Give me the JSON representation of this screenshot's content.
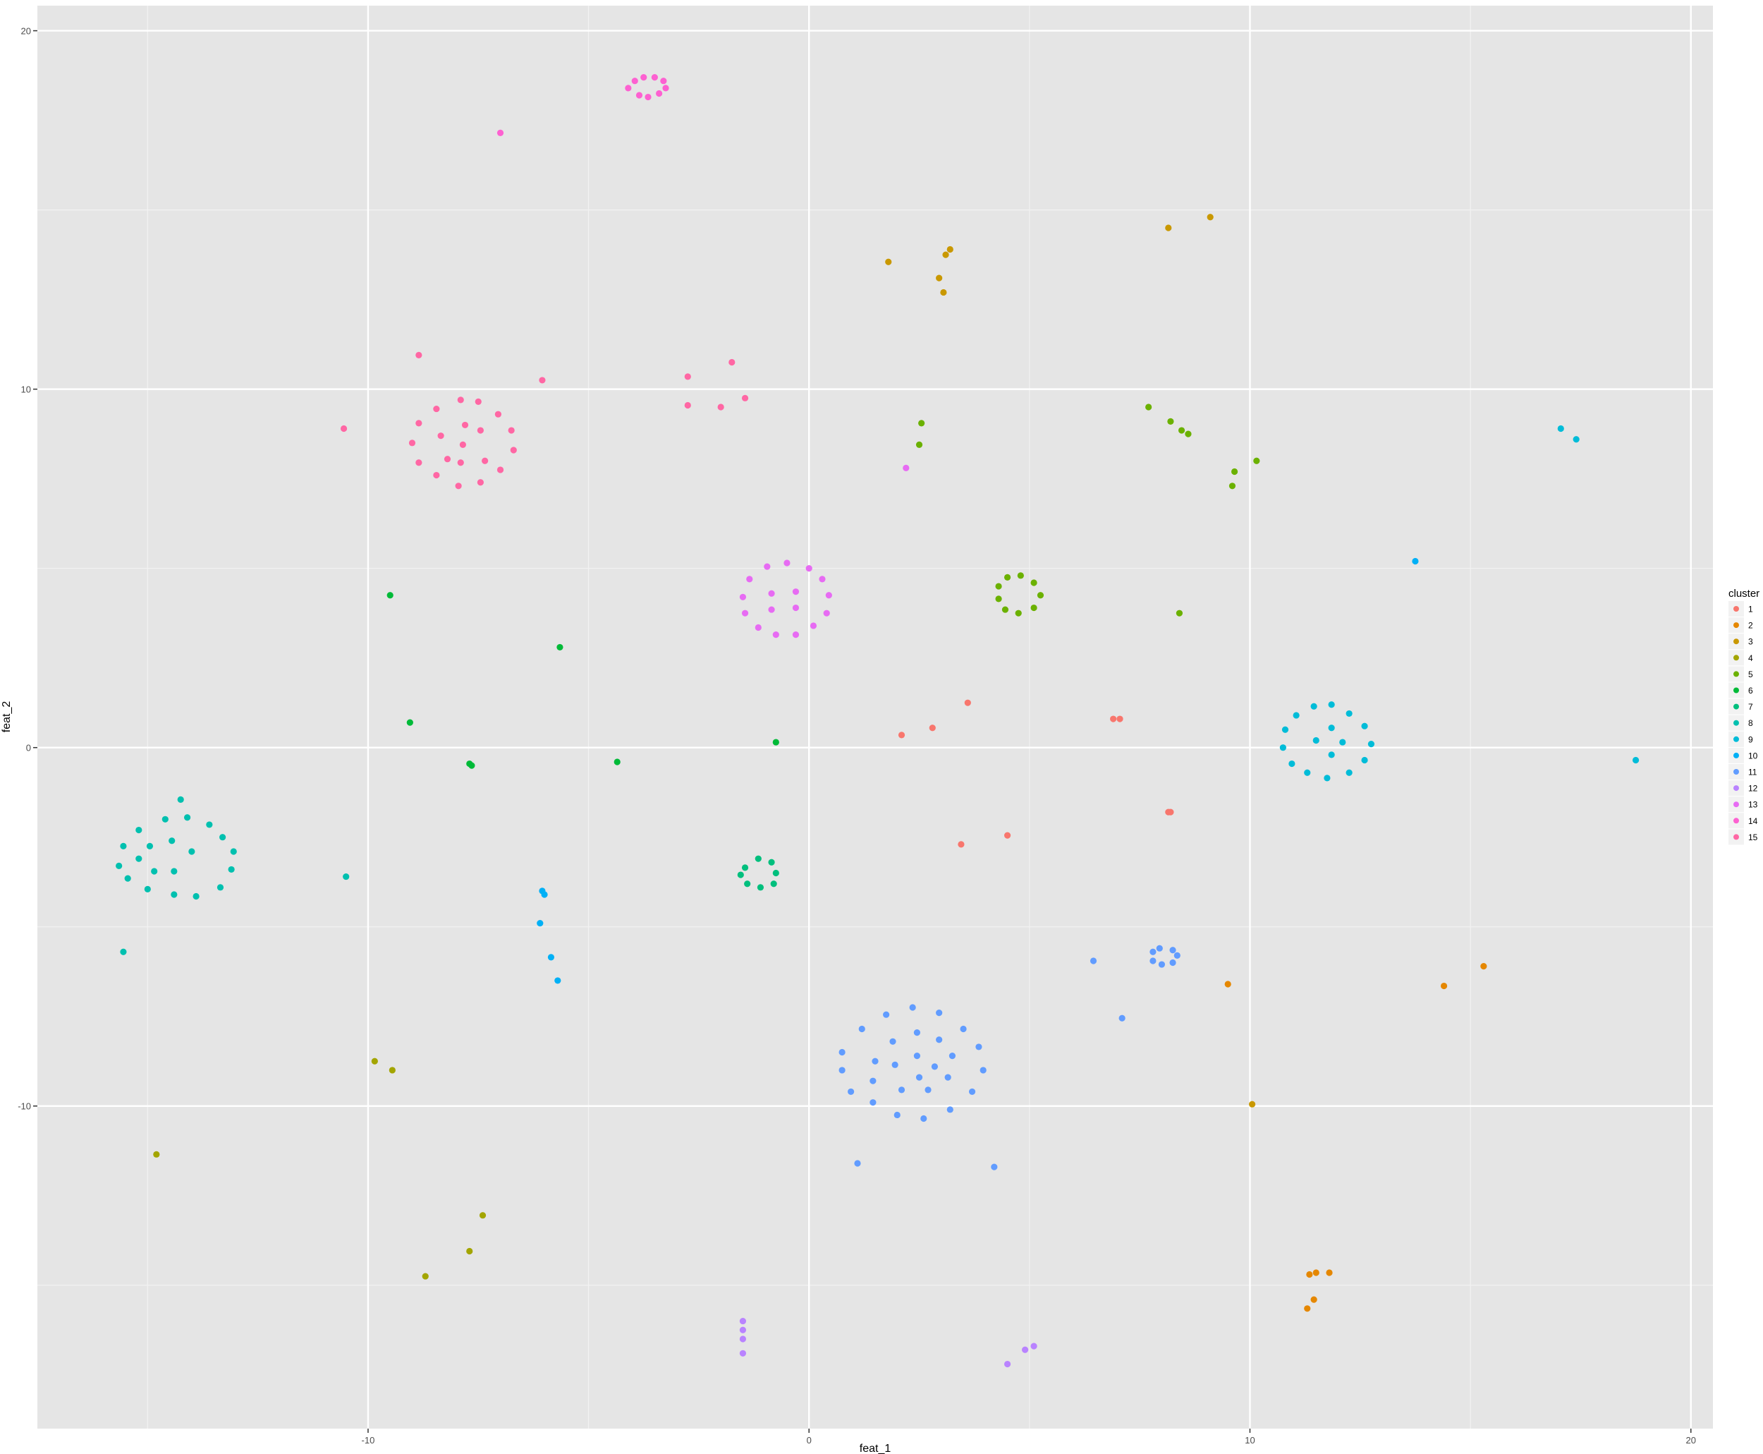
{
  "chart_data": {
    "type": "scatter",
    "title": "",
    "xlabel": "feat_1",
    "ylabel": "feat_2",
    "xlim": [
      -17.5,
      20.5
    ],
    "ylim": [
      -19,
      20.7
    ],
    "x_ticks": [
      -10,
      0,
      10,
      20
    ],
    "y_ticks": [
      -10,
      0,
      10,
      20
    ],
    "grid": true,
    "legend": {
      "title": "cluster",
      "placement": "right"
    },
    "series": [
      {
        "name": "1",
        "color": "#F8766D",
        "points": [
          [
            2.1,
            0.35
          ],
          [
            2.8,
            0.55
          ],
          [
            3.6,
            1.25
          ],
          [
            6.9,
            0.8
          ],
          [
            7.05,
            0.8
          ],
          [
            8.15,
            -1.8
          ],
          [
            8.2,
            -1.8
          ],
          [
            3.45,
            -2.7
          ],
          [
            4.5,
            -2.45
          ]
        ]
      },
      {
        "name": "2",
        "color": "#E58700",
        "points": [
          [
            9.5,
            -6.6
          ],
          [
            14.4,
            -6.65
          ],
          [
            15.3,
            -6.1
          ],
          [
            11.35,
            -14.7
          ],
          [
            11.5,
            -14.65
          ],
          [
            11.8,
            -14.65
          ],
          [
            11.45,
            -15.4
          ],
          [
            11.3,
            -15.65
          ]
        ]
      },
      {
        "name": "3",
        "color": "#C99800",
        "points": [
          [
            1.8,
            13.55
          ],
          [
            2.95,
            13.1
          ],
          [
            3.05,
            12.7
          ],
          [
            3.1,
            13.75
          ],
          [
            3.2,
            13.9
          ],
          [
            8.15,
            14.5
          ],
          [
            9.1,
            14.8
          ],
          [
            10.05,
            -9.95
          ]
        ]
      },
      {
        "name": "4",
        "color": "#A3A500",
        "points": [
          [
            -9.85,
            -8.75
          ],
          [
            -9.45,
            -9.0
          ],
          [
            -14.8,
            -11.35
          ],
          [
            -7.4,
            -13.05
          ],
          [
            -7.7,
            -14.05
          ],
          [
            -8.7,
            -14.75
          ]
        ]
      },
      {
        "name": "5",
        "color": "#6BB100",
        "points": [
          [
            2.55,
            9.05
          ],
          [
            2.5,
            8.45
          ],
          [
            7.7,
            9.5
          ],
          [
            8.2,
            9.1
          ],
          [
            8.45,
            8.85
          ],
          [
            8.6,
            8.75
          ],
          [
            9.65,
            7.7
          ],
          [
            9.6,
            7.3
          ],
          [
            10.15,
            8.0
          ],
          [
            8.4,
            3.75
          ],
          [
            4.3,
            4.5
          ],
          [
            4.5,
            4.75
          ],
          [
            4.8,
            4.8
          ],
          [
            5.1,
            4.6
          ],
          [
            5.25,
            4.25
          ],
          [
            5.1,
            3.9
          ],
          [
            4.75,
            3.75
          ],
          [
            4.45,
            3.85
          ],
          [
            4.3,
            4.15
          ]
        ]
      },
      {
        "name": "6",
        "color": "#00BA38",
        "points": [
          [
            -9.5,
            4.25
          ],
          [
            -9.05,
            0.7
          ],
          [
            -5.65,
            2.8
          ],
          [
            -7.7,
            -0.45
          ],
          [
            -7.65,
            -0.5
          ],
          [
            -4.35,
            -0.4
          ],
          [
            -0.75,
            0.15
          ]
        ]
      },
      {
        "name": "7",
        "color": "#00BF7D",
        "points": [
          [
            -1.45,
            -3.35
          ],
          [
            -1.15,
            -3.1
          ],
          [
            -0.85,
            -3.2
          ],
          [
            -0.75,
            -3.5
          ],
          [
            -0.8,
            -3.8
          ],
          [
            -1.1,
            -3.9
          ],
          [
            -1.4,
            -3.8
          ],
          [
            -1.55,
            -3.55
          ]
        ]
      },
      {
        "name": "8",
        "color": "#00C0AF",
        "points": [
          [
            -15.2,
            -2.3
          ],
          [
            -14.6,
            -2.0
          ],
          [
            -14.1,
            -1.95
          ],
          [
            -13.6,
            -2.15
          ],
          [
            -13.3,
            -2.5
          ],
          [
            -13.05,
            -2.9
          ],
          [
            -13.1,
            -3.4
          ],
          [
            -13.35,
            -3.9
          ],
          [
            -13.9,
            -4.15
          ],
          [
            -14.4,
            -4.1
          ],
          [
            -15.0,
            -3.95
          ],
          [
            -15.45,
            -3.65
          ],
          [
            -15.65,
            -3.3
          ],
          [
            -15.55,
            -2.75
          ],
          [
            -14.95,
            -2.75
          ],
          [
            -14.45,
            -2.6
          ],
          [
            -14.0,
            -2.9
          ],
          [
            -14.4,
            -3.45
          ],
          [
            -14.85,
            -3.45
          ],
          [
            -15.2,
            -3.1
          ],
          [
            -14.25,
            -1.45
          ],
          [
            -15.55,
            -5.7
          ],
          [
            -10.5,
            -3.6
          ]
        ]
      },
      {
        "name": "9",
        "color": "#00BCD8",
        "points": [
          [
            10.8,
            0.5
          ],
          [
            11.05,
            0.9
          ],
          [
            11.45,
            1.15
          ],
          [
            11.85,
            1.2
          ],
          [
            12.25,
            0.95
          ],
          [
            12.6,
            0.6
          ],
          [
            12.75,
            0.1
          ],
          [
            12.6,
            -0.35
          ],
          [
            12.25,
            -0.7
          ],
          [
            11.75,
            -0.85
          ],
          [
            11.3,
            -0.7
          ],
          [
            10.95,
            -0.45
          ],
          [
            10.75,
            0.0
          ],
          [
            11.5,
            0.2
          ],
          [
            11.85,
            0.55
          ],
          [
            12.1,
            0.15
          ],
          [
            11.85,
            -0.2
          ],
          [
            17.05,
            8.9
          ],
          [
            17.4,
            8.6
          ],
          [
            18.75,
            -0.35
          ]
        ]
      },
      {
        "name": "10",
        "color": "#00B0F6",
        "points": [
          [
            13.75,
            5.2
          ],
          [
            -6.05,
            -4.0
          ],
          [
            -6.0,
            -4.1
          ],
          [
            -6.1,
            -4.9
          ],
          [
            -5.85,
            -5.85
          ],
          [
            -5.7,
            -6.5
          ]
        ]
      },
      {
        "name": "11",
        "color": "#619CFF",
        "points": [
          [
            0.75,
            -8.5
          ],
          [
            1.2,
            -7.85
          ],
          [
            1.75,
            -7.45
          ],
          [
            2.35,
            -7.25
          ],
          [
            2.95,
            -7.4
          ],
          [
            3.5,
            -7.85
          ],
          [
            3.85,
            -8.35
          ],
          [
            3.95,
            -9.0
          ],
          [
            3.7,
            -9.6
          ],
          [
            3.2,
            -10.1
          ],
          [
            2.6,
            -10.35
          ],
          [
            2.0,
            -10.25
          ],
          [
            1.45,
            -9.9
          ],
          [
            0.95,
            -9.6
          ],
          [
            0.75,
            -9.0
          ],
          [
            1.5,
            -8.75
          ],
          [
            1.9,
            -8.2
          ],
          [
            2.45,
            -7.95
          ],
          [
            2.95,
            -8.15
          ],
          [
            3.25,
            -8.6
          ],
          [
            3.15,
            -9.2
          ],
          [
            2.7,
            -9.55
          ],
          [
            2.1,
            -9.55
          ],
          [
            1.45,
            -9.3
          ],
          [
            1.95,
            -8.85
          ],
          [
            2.45,
            -8.6
          ],
          [
            2.85,
            -8.9
          ],
          [
            2.5,
            -9.2
          ],
          [
            6.45,
            -5.95
          ],
          [
            7.1,
            -7.55
          ],
          [
            7.8,
            -5.7
          ],
          [
            7.95,
            -5.6
          ],
          [
            8.25,
            -5.65
          ],
          [
            8.35,
            -5.8
          ],
          [
            8.25,
            -6.0
          ],
          [
            8.0,
            -6.05
          ],
          [
            7.8,
            -5.95
          ],
          [
            1.1,
            -11.6
          ],
          [
            4.2,
            -11.7
          ]
        ]
      },
      {
        "name": "12",
        "color": "#B983FF",
        "points": [
          [
            -1.5,
            -16.0
          ],
          [
            -1.5,
            -16.25
          ],
          [
            -1.5,
            -16.5
          ],
          [
            -1.5,
            -16.9
          ],
          [
            4.5,
            -17.2
          ],
          [
            4.9,
            -16.8
          ],
          [
            5.1,
            -16.7
          ]
        ]
      },
      {
        "name": "13",
        "color": "#E76BF3",
        "points": [
          [
            -0.5,
            5.15
          ],
          [
            -0.95,
            5.05
          ],
          [
            -1.35,
            4.7
          ],
          [
            -1.5,
            4.2
          ],
          [
            -1.45,
            3.75
          ],
          [
            -1.15,
            3.35
          ],
          [
            -0.75,
            3.15
          ],
          [
            -0.3,
            3.15
          ],
          [
            0.1,
            3.4
          ],
          [
            0.4,
            3.75
          ],
          [
            0.45,
            4.25
          ],
          [
            0.3,
            4.7
          ],
          [
            0.0,
            5.0
          ],
          [
            -0.85,
            4.3
          ],
          [
            -0.3,
            4.35
          ],
          [
            -0.85,
            3.85
          ],
          [
            -0.3,
            3.9
          ],
          [
            2.2,
            7.8
          ]
        ]
      },
      {
        "name": "14",
        "color": "#FD61D1",
        "points": [
          [
            -3.95,
            18.6
          ],
          [
            -3.75,
            18.7
          ],
          [
            -3.5,
            18.7
          ],
          [
            -3.3,
            18.6
          ],
          [
            -3.25,
            18.4
          ],
          [
            -3.4,
            18.25
          ],
          [
            -3.65,
            18.15
          ],
          [
            -3.85,
            18.2
          ],
          [
            -4.1,
            18.4
          ],
          [
            -7.0,
            17.15
          ]
        ]
      },
      {
        "name": "15",
        "color": "#FF67A4",
        "points": [
          [
            -8.85,
            10.95
          ],
          [
            -6.05,
            10.25
          ],
          [
            -2.75,
            10.35
          ],
          [
            -1.75,
            10.75
          ],
          [
            -1.45,
            9.75
          ],
          [
            -2.75,
            9.55
          ],
          [
            -2.0,
            9.5
          ],
          [
            -10.55,
            8.9
          ],
          [
            -8.45,
            9.45
          ],
          [
            -7.9,
            9.7
          ],
          [
            -7.5,
            9.65
          ],
          [
            -7.05,
            9.3
          ],
          [
            -6.75,
            8.85
          ],
          [
            -6.7,
            8.3
          ],
          [
            -7.0,
            7.75
          ],
          [
            -7.45,
            7.4
          ],
          [
            -7.95,
            7.3
          ],
          [
            -8.45,
            7.6
          ],
          [
            -8.85,
            7.95
          ],
          [
            -9.0,
            8.5
          ],
          [
            -8.85,
            9.05
          ],
          [
            -8.35,
            8.7
          ],
          [
            -7.85,
            8.45
          ],
          [
            -7.45,
            8.85
          ],
          [
            -7.35,
            8.0
          ],
          [
            -7.9,
            7.95
          ],
          [
            -8.2,
            8.05
          ],
          [
            -7.8,
            9.0
          ]
        ]
      }
    ]
  }
}
